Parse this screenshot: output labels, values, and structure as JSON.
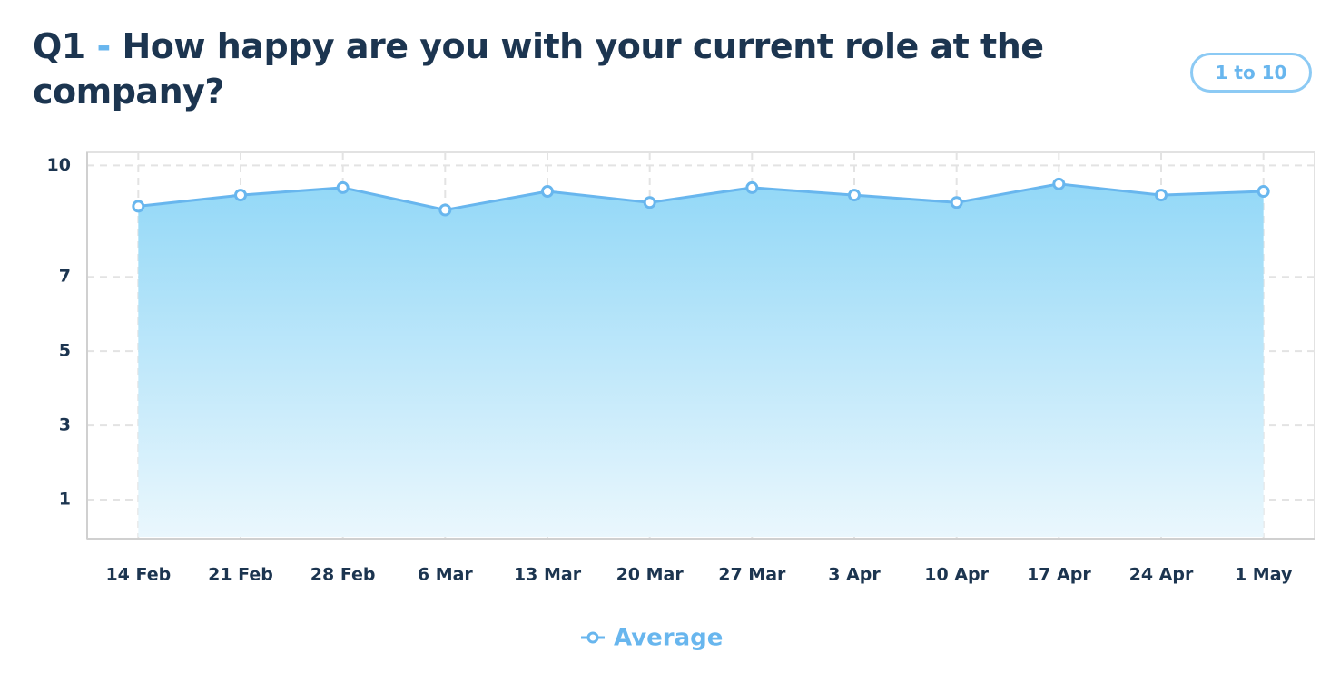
{
  "chart_data": {
    "type": "line",
    "question_number": "Q1",
    "separator": "-",
    "title": "How happy are you with your current role at the company?",
    "scale_badge": "1 to 10",
    "categories": [
      "14 Feb",
      "21 Feb",
      "28 Feb",
      "6 Mar",
      "13 Mar",
      "20 Mar",
      "27 Mar",
      "3 Apr",
      "10 Apr",
      "17 Apr",
      "24 Apr",
      "1 May"
    ],
    "series": [
      {
        "name": "Average",
        "color": "#68b6ee",
        "values": [
          8.9,
          9.2,
          9.4,
          8.8,
          9.3,
          9.0,
          9.4,
          9.2,
          9.0,
          9.5,
          9.2,
          9.3
        ]
      }
    ],
    "ylim": [
      0,
      10.35
    ],
    "yticks": [
      1,
      3,
      5,
      7,
      10
    ],
    "grid": true,
    "area": true,
    "legend": "bottom"
  }
}
